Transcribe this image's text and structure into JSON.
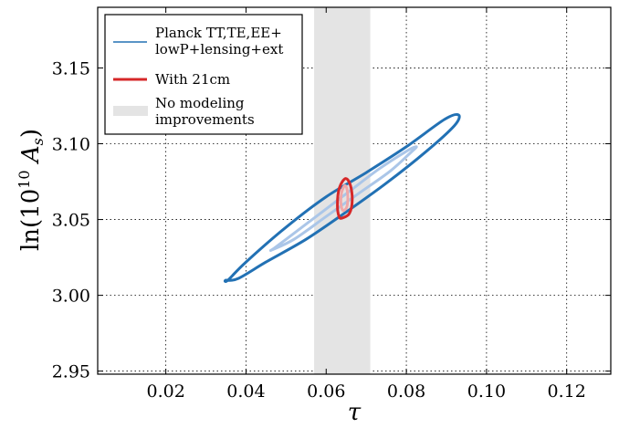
{
  "chart_data": {
    "type": "contour",
    "xlabel": "τ",
    "ylabel": "ln(10^10 A_s)",
    "ylabel_parts": {
      "prefix": "ln(10",
      "sup": "10",
      "var": "A",
      "sub": "s",
      "suffix": ")"
    },
    "xlim": [
      0.003,
      0.131
    ],
    "ylim": [
      2.948,
      3.19
    ],
    "xticks": [
      0.02,
      0.04,
      0.06,
      0.08,
      0.1,
      0.12
    ],
    "xtick_labels": [
      "0.02",
      "0.04",
      "0.06",
      "0.08",
      "0.10",
      "0.12"
    ],
    "yticks": [
      2.95,
      3.0,
      3.05,
      3.1,
      3.15
    ],
    "ytick_labels": [
      "2.95",
      "3.00",
      "3.05",
      "3.10",
      "3.15"
    ],
    "grid": true,
    "legend_position": "top-left",
    "band": {
      "name": "No modeling improvements",
      "x_range": [
        0.057,
        0.071
      ],
      "color": "#e4e4e4"
    },
    "series": [
      {
        "name": "Planck TT,TE,EE+ lowP+lensing+ext",
        "legend_lines": [
          "Planck TT,TE,EE+",
          "lowP+lensing+ext"
        ],
        "color": "#2271b4",
        "contours": [
          {
            "level": "95%",
            "color": "#2271b4",
            "points": [
              [
                0.0355,
                3.01
              ],
              [
                0.04,
                3.022
              ],
              [
                0.05,
                3.045
              ],
              [
                0.06,
                3.065
              ],
              [
                0.07,
                3.081
              ],
              [
                0.08,
                3.098
              ],
              [
                0.0895,
                3.116
              ],
              [
                0.093,
                3.119
              ],
              [
                0.092,
                3.112
              ],
              [
                0.085,
                3.095
              ],
              [
                0.075,
                3.074
              ],
              [
                0.065,
                3.055
              ],
              [
                0.055,
                3.037
              ],
              [
                0.045,
                3.022
              ],
              [
                0.038,
                3.011
              ],
              [
                0.035,
                3.01
              ]
            ]
          },
          {
            "level": "68%",
            "color": "#abc6e8",
            "points": [
              [
                0.0465,
                3.03
              ],
              [
                0.052,
                3.037
              ],
              [
                0.06,
                3.052
              ],
              [
                0.068,
                3.067
              ],
              [
                0.076,
                3.082
              ],
              [
                0.081,
                3.094
              ],
              [
                0.0825,
                3.098
              ],
              [
                0.08,
                3.095
              ],
              [
                0.073,
                3.083
              ],
              [
                0.065,
                3.067
              ],
              [
                0.057,
                3.051
              ],
              [
                0.05,
                3.037
              ],
              [
                0.047,
                3.031
              ]
            ]
          }
        ]
      },
      {
        "name": "With 21cm",
        "color": "#d62728",
        "contours": [
          {
            "level": "95%",
            "color": "#d62728",
            "points": [
              [
                0.064,
                3.051
              ],
              [
                0.0658,
                3.054
              ],
              [
                0.0665,
                3.063
              ],
              [
                0.066,
                3.073
              ],
              [
                0.0648,
                3.077
              ],
              [
                0.0633,
                3.071
              ],
              [
                0.0628,
                3.06
              ],
              [
                0.0632,
                3.052
              ]
            ]
          },
          {
            "level": "68%",
            "color": "#f0a8a8",
            "points": [
              [
                0.0642,
                3.056
              ],
              [
                0.0651,
                3.058
              ],
              [
                0.0654,
                3.064
              ],
              [
                0.0651,
                3.071
              ],
              [
                0.0645,
                3.072
              ],
              [
                0.0638,
                3.067
              ],
              [
                0.0637,
                3.06
              ]
            ]
          }
        ]
      }
    ]
  }
}
